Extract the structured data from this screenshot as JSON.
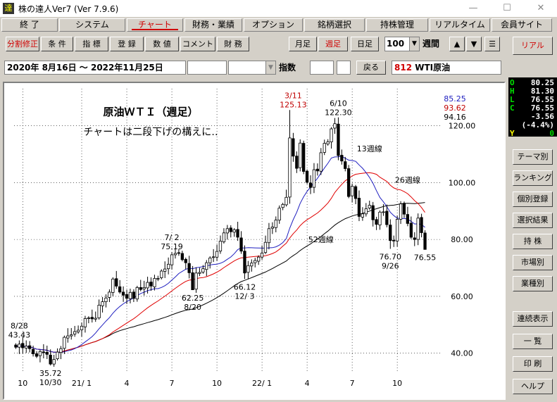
{
  "window": {
    "title": "株の達人Ver7 (Ver 7.9.6)",
    "icon_char": "達",
    "min": "—",
    "max": "☐",
    "close": "✕"
  },
  "menu": [
    "終 了",
    "システム",
    "チャート",
    "財務・業績",
    "オプション",
    "銘柄選択",
    "持株管理",
    "リアルタイム",
    "会員サイト"
  ],
  "toolbar": {
    "buttons": [
      "分割修正",
      "条 件",
      "指 標",
      "登 録",
      "数 値",
      "コメント",
      "財 務"
    ],
    "monthly": "月足",
    "weekly": "週足",
    "daily": "日足",
    "count": "100",
    "unit": "週間",
    "up": "▲",
    "down": "▼",
    "menu": "☰"
  },
  "daterow": {
    "range": "2020年 8月16日 ～ 2022年11月25日",
    "index_label": "指数",
    "back": "戻る",
    "code": "812",
    "name": "WTI原油"
  },
  "side": {
    "real": "リアル",
    "buttons": [
      "テーマ別",
      "ランキング",
      "個別登録",
      "選択結果",
      "持 株",
      "市場別",
      "業種別",
      "連続表示",
      "一 覧",
      "印 刷",
      "ヘルプ"
    ]
  },
  "quote": {
    "O": "80.25",
    "H": "81.30",
    "L": "76.55",
    "C": "76.55",
    "chg": "-3.56",
    "pct": "(-4.4%)",
    "Y": "0"
  },
  "colors": {
    "candle_up": "#000000",
    "candle_down": "#000000",
    "ma13": "#2020c0",
    "ma26": "#e00000",
    "ma52": "#000000",
    "anno_red": "#c00000"
  },
  "chart_data": {
    "type": "candlestick",
    "title": "原油ＷＴＩ（週足）",
    "subtitle": "チャートは二段下げの構えに‥",
    "y_ticks": [
      "120.00",
      "100.00",
      "80.00",
      "60.00",
      "40.00"
    ],
    "ylim": [
      33,
      133
    ],
    "x_ticks": [
      {
        "i": 2,
        "label": "10"
      },
      {
        "i": 19,
        "label": "21/ 1"
      },
      {
        "i": 32,
        "label": "4"
      },
      {
        "i": 45,
        "label": "7"
      },
      {
        "i": 58,
        "label": "10"
      },
      {
        "i": 71,
        "label": "22/ 1"
      },
      {
        "i": 84,
        "label": "4"
      },
      {
        "i": 97,
        "label": "7"
      },
      {
        "i": 110,
        "label": "10"
      }
    ],
    "ma_labels": [
      {
        "text": "13週線",
        "i": 102,
        "y": 111
      },
      {
        "text": "26週線",
        "i": 113,
        "y": 100
      },
      {
        "text": "52週線",
        "i": 88,
        "y": 79
      }
    ],
    "legend_values": [
      {
        "text": "85.25",
        "color": "#2020c0"
      },
      {
        "text": "93.62",
        "color": "#c00000"
      },
      {
        "text": "94.16",
        "color": "#000000"
      }
    ],
    "annotations": [
      {
        "lines": [
          "8/28",
          "43.43"
        ],
        "i": 1,
        "y": 44.5,
        "pos": "above",
        "color": "#000000"
      },
      {
        "lines": [
          "35.72",
          "10/30"
        ],
        "i": 10,
        "y": 35.7,
        "pos": "below",
        "color": "#000000"
      },
      {
        "lines": [
          "7/ 2",
          "75.19"
        ],
        "i": 45,
        "y": 75.6,
        "pos": "above",
        "color": "#000000"
      },
      {
        "lines": [
          "62.25",
          "8/20"
        ],
        "i": 51,
        "y": 62.2,
        "pos": "below",
        "color": "#000000"
      },
      {
        "lines": [
          "66.12",
          "12/ 3"
        ],
        "i": 66,
        "y": 66.1,
        "pos": "below",
        "color": "#000000"
      },
      {
        "lines": [
          "3/11",
          "125.13"
        ],
        "i": 80,
        "y": 125.5,
        "pos": "above",
        "color": "#c00000"
      },
      {
        "lines": [
          "6/10",
          "122.30"
        ],
        "i": 93,
        "y": 122.7,
        "pos": "above",
        "color": "#000000"
      },
      {
        "lines": [
          "76.70",
          "9/26"
        ],
        "i": 108,
        "y": 76.7,
        "pos": "below",
        "color": "#000000"
      },
      {
        "lines": [
          "76.55"
        ],
        "i": 118,
        "y": 76.5,
        "pos": "below",
        "color": "#000000"
      }
    ],
    "close": [
      42.1,
      43.2,
      41.9,
      42.5,
      41.6,
      39.8,
      38.9,
      40.6,
      40.2,
      39.6,
      36.2,
      37.8,
      40.4,
      41.6,
      45.6,
      46.1,
      46.5,
      47.6,
      48.1,
      49.5,
      52.2,
      52.4,
      52.1,
      52.3,
      56.9,
      58.1,
      59.4,
      61.5,
      66.1,
      63.6,
      61.5,
      60.4,
      59.3,
      61.4,
      59.3,
      63.1,
      62.4,
      63.1,
      64.9,
      63.6,
      66.3,
      66.3,
      68.9,
      69.6,
      71.3,
      74.6,
      75.1,
      75.2,
      72.9,
      71.8,
      68.3,
      62.3,
      68.2,
      68.4,
      69.7,
      71.8,
      73.5,
      73.9,
      75.8,
      79.4,
      82.3,
      83.8,
      82.7,
      83.4,
      80.8,
      75.9,
      68.2,
      70.8,
      71.7,
      72.6,
      73.8,
      75.2,
      79.0,
      83.8,
      84.4,
      86.8,
      91.0,
      92.3,
      94.8,
      115.7,
      109.3,
      105.0,
      113.9,
      103.9,
      100.1,
      98.3,
      104.5,
      104.1,
      110.5,
      113.8,
      114.3,
      118.9,
      120.7,
      109.5,
      107.6,
      104.9,
      95.1,
      98.7,
      94.4,
      88.1,
      89.0,
      90.8,
      92.0,
      86.9,
      85.3,
      89.6,
      89.7,
      85.2,
      79.6,
      79.7,
      87.1,
      92.5,
      88.9,
      85.6,
      80.8,
      80.0,
      87.5,
      82.4,
      76.5
    ]
  }
}
